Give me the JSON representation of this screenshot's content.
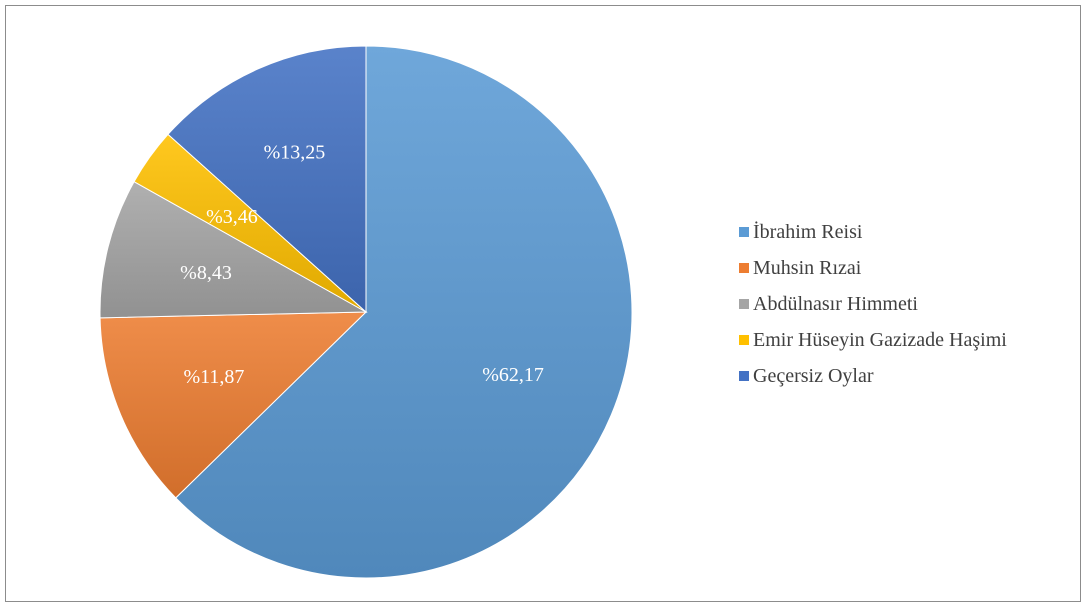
{
  "chart_data": {
    "type": "pie",
    "categories": [
      "İbrahim Reisi",
      "Muhsin Rızai",
      "Abdülnasır Himmeti",
      "Emir Hüseyin Gazizade Haşimi",
      "Geçersiz Oylar"
    ],
    "values": [
      62.17,
      11.87,
      8.43,
      3.46,
      13.25
    ],
    "data_labels": [
      "%62,17",
      "%11,87",
      "%8,43",
      "%3,46",
      "%13,25"
    ],
    "colors": [
      "#5b9bd5",
      "#ed7d31",
      "#a5a5a5",
      "#ffc000",
      "#4472c4"
    ],
    "start_angle": "12 o'clock",
    "direction": "clockwise",
    "legend_position": "right"
  }
}
